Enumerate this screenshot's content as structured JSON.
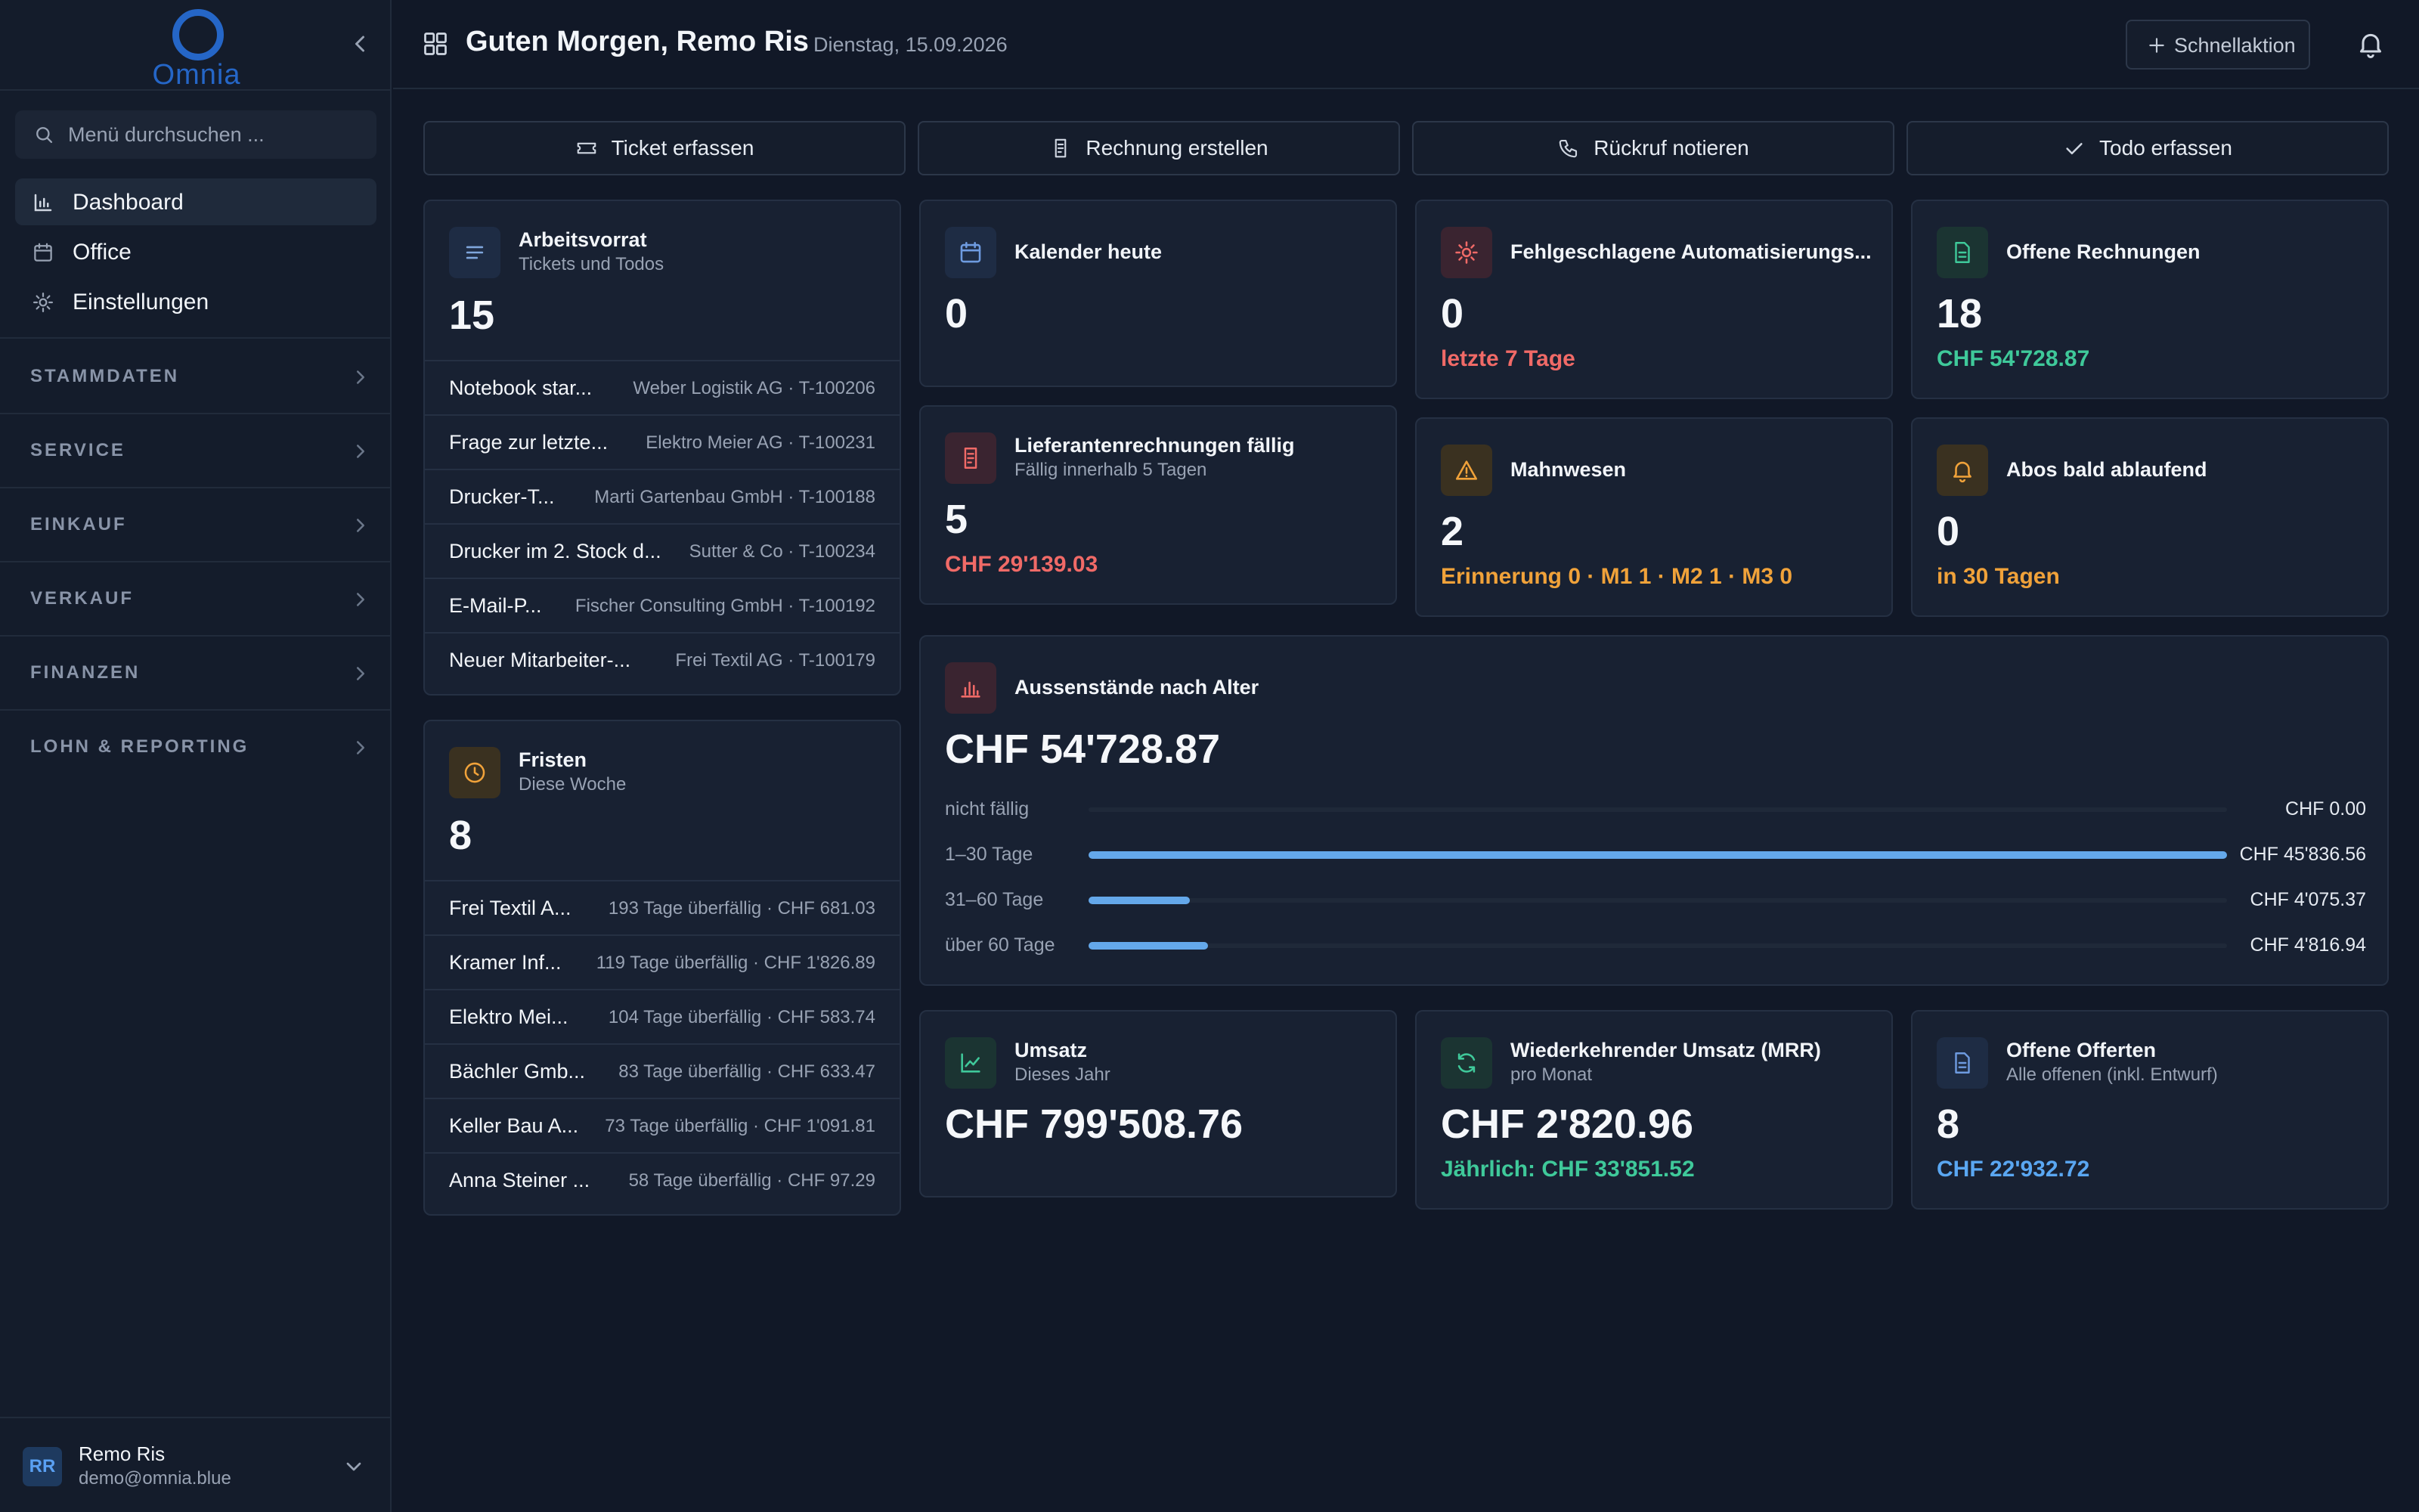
{
  "sidebar": {
    "logo_text": "Omnia",
    "search_placeholder": "Menü durchsuchen ...",
    "nav": [
      {
        "label": "Dashboard",
        "icon": "bar-chart-icon",
        "active": true
      },
      {
        "label": "Office",
        "icon": "calendar-icon"
      },
      {
        "label": "Einstellungen",
        "icon": "gear-icon"
      }
    ],
    "sections": [
      "STAMMDATEN",
      "SERVICE",
      "EINKAUF",
      "VERKAUF",
      "FINANZEN",
      "LOHN & REPORTING"
    ],
    "user": {
      "initials": "RR",
      "name": "Remo Ris",
      "email": "demo@omnia.blue"
    }
  },
  "header": {
    "greeting": "Guten Morgen, Remo Ris",
    "date": "Dienstag, 15.09.2026",
    "quick_action": "Schnellaktion"
  },
  "actions": [
    {
      "label": "Ticket erfassen",
      "icon": "ticket-icon"
    },
    {
      "label": "Rechnung erstellen",
      "icon": "receipt-icon"
    },
    {
      "label": "Rückruf notieren",
      "icon": "phone-icon"
    },
    {
      "label": "Todo erfassen",
      "icon": "check-icon"
    }
  ],
  "backlog": {
    "title": "Arbeitsvorrat",
    "subtitle": "Tickets und Todos",
    "count": "15",
    "items": [
      {
        "title": "Notebook star...",
        "meta": "Weber Logistik AG · T-100206"
      },
      {
        "title": "Frage zur letzte...",
        "meta": "Elektro Meier AG · T-100231"
      },
      {
        "title": "Drucker-T...",
        "meta": "Marti Gartenbau GmbH · T-100188"
      },
      {
        "title": "Drucker im 2. Stock d...",
        "meta": "Sutter & Co · T-100234"
      },
      {
        "title": "E-Mail-P...",
        "meta": "Fischer Consulting GmbH · T-100192"
      },
      {
        "title": "Neuer Mitarbeiter-...",
        "meta": "Frei Textil AG · T-100179"
      }
    ]
  },
  "deadlines": {
    "title": "Fristen",
    "subtitle": "Diese Woche",
    "count": "8",
    "items": [
      {
        "title": "Frei Textil A...",
        "meta": "193 Tage überfällig · CHF 681.03"
      },
      {
        "title": "Kramer Inf...",
        "meta": "119 Tage überfällig · CHF 1'826.89"
      },
      {
        "title": "Elektro Mei...",
        "meta": "104 Tage überfällig · CHF 583.74"
      },
      {
        "title": "Bächler Gmb...",
        "meta": "83 Tage überfällig · CHF 633.47"
      },
      {
        "title": "Keller Bau A...",
        "meta": "73 Tage überfällig · CHF 1'091.81"
      },
      {
        "title": "Anna Steiner ...",
        "meta": "58 Tage überfällig · CHF 97.29"
      }
    ]
  },
  "calendar": {
    "title": "Kalender heute",
    "value": "0"
  },
  "failed_automations": {
    "title": "Fehlgeschlagene Automatisierungs...",
    "value": "0",
    "note": "letzte 7 Tage"
  },
  "open_invoices": {
    "title": "Offene Rechnungen",
    "value": "18",
    "note": "CHF 54'728.87"
  },
  "supplier_invoices": {
    "title": "Lieferantenrechnungen fällig",
    "subtitle": "Fällig innerhalb 5 Tagen",
    "value": "5",
    "note": "CHF 29'139.03"
  },
  "dunning": {
    "title": "Mahnwesen",
    "value": "2",
    "note": "Erinnerung 0 · M1 1 · M2 1 · M3 0"
  },
  "subscriptions": {
    "title": "Abos bald ablaufend",
    "value": "0",
    "note": "in 30 Tagen"
  },
  "aging": {
    "title": "Aussenstände nach Alter",
    "total": "CHF 54'728.87",
    "rows": [
      {
        "label": "nicht fällig",
        "value": "CHF 0.00",
        "fraction": 0
      },
      {
        "label": "1–30 Tage",
        "value": "CHF 45'836.56",
        "fraction": 1.0
      },
      {
        "label": "31–60 Tage",
        "value": "CHF 4'075.37",
        "fraction": 0.089
      },
      {
        "label": "über 60 Tage",
        "value": "CHF 4'816.94",
        "fraction": 0.105
      }
    ]
  },
  "revenue": {
    "title": "Umsatz",
    "subtitle": "Dieses Jahr",
    "value": "CHF 799'508.76"
  },
  "mrr": {
    "title": "Wiederkehrender Umsatz (MRR)",
    "subtitle": "pro Monat",
    "value": "CHF 2'820.96",
    "note": "Jährlich: CHF 33'851.52"
  },
  "offers": {
    "title": "Offene Offerten",
    "subtitle": "Alle offenen (inkl. Entwurf)",
    "value": "8",
    "note": "CHF 22'932.72"
  },
  "colors": {
    "accent": "#2566c7",
    "red": "#f06a67",
    "green": "#3fc99a",
    "amber": "#f0a23a",
    "blue": "#5aa7f2"
  }
}
